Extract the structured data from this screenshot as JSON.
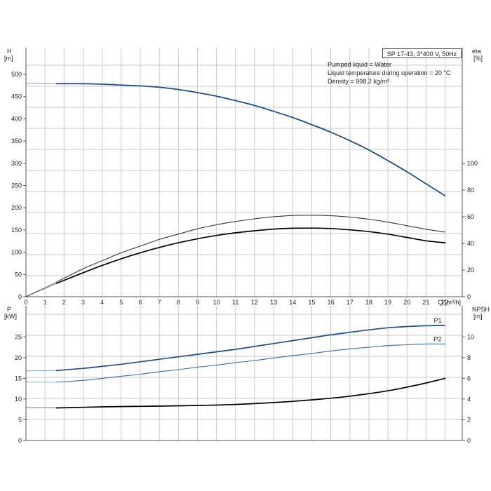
{
  "chart_data": [
    {
      "type": "line",
      "title": "",
      "ylabel_left": [
        "H",
        "[m]"
      ],
      "ylabel_right": [
        "eta",
        "[%]"
      ],
      "xlabel": "Q [m³/h]",
      "xlim": [
        0,
        22.9
      ],
      "ylim": [
        0,
        560
      ],
      "ylim_right": [
        0,
        187
      ],
      "x_ticks": [
        "0",
        "1",
        "2",
        "3",
        "4",
        "5",
        "6",
        "7",
        "8",
        "9",
        "10",
        "11",
        "12",
        "13",
        "14",
        "15",
        "16",
        "17",
        "18",
        "19",
        "20",
        "21",
        "22"
      ],
      "y_ticks": [
        "0",
        "50",
        "100",
        "150",
        "200",
        "250",
        "300",
        "350",
        "400",
        "450",
        "500"
      ],
      "y_ticks_right": [
        "0",
        "20",
        "40",
        "60",
        "80",
        "100"
      ],
      "grid": true,
      "series": [
        {
          "id": "head",
          "axis": "left",
          "color": "#1f4e8c",
          "x": [
            0,
            1.6,
            3,
            4,
            5,
            6,
            7,
            8,
            9,
            10,
            11,
            12,
            13,
            14,
            15,
            16,
            17,
            18,
            19,
            20,
            21,
            22
          ],
          "y": [
            480,
            479,
            479,
            478,
            476,
            474,
            471,
            466,
            459,
            451,
            441,
            430,
            417,
            403,
            387,
            370,
            351,
            330,
            306,
            281,
            254,
            227
          ]
        },
        {
          "id": "eta-pump",
          "axis": "right",
          "color": "#333333",
          "x": [
            0,
            1.6,
            3,
            4,
            5,
            6,
            7,
            8,
            9,
            10,
            11,
            12,
            13,
            14,
            15,
            16,
            17,
            18,
            19,
            20,
            21,
            22
          ],
          "y": [
            0,
            11,
            21,
            27,
            33,
            38,
            43,
            47,
            51,
            54,
            56.5,
            58.5,
            60,
            61,
            61.2,
            60.8,
            59.8,
            58.2,
            56,
            53.3,
            50.7,
            48.5
          ]
        },
        {
          "id": "eta-total",
          "axis": "right",
          "color": "#000000",
          "x": [
            0,
            1.6,
            3,
            4,
            5,
            6,
            7,
            8,
            9,
            10,
            11,
            12,
            13,
            14,
            15,
            16,
            17,
            18,
            19,
            20,
            21,
            22
          ],
          "y": [
            0,
            10,
            18,
            23.5,
            28.5,
            33,
            37,
            40.5,
            43.5,
            46,
            48,
            49.5,
            50.8,
            51.4,
            51.5,
            51.2,
            50.2,
            48.9,
            47,
            44.5,
            42,
            40.5
          ]
        }
      ]
    },
    {
      "type": "line",
      "title": "",
      "ylabel_left": [
        "P",
        "[kW]"
      ],
      "ylabel_right": [
        "NPSH",
        "[m]"
      ],
      "xlabel": "",
      "xlim": [
        0,
        22.9
      ],
      "ylim": [
        0,
        32.5
      ],
      "ylim_right": [
        0,
        13
      ],
      "y_ticks": [
        "0",
        "5",
        "10",
        "15",
        "20",
        "25"
      ],
      "y_ticks_right": [
        "0",
        "2",
        "4",
        "6",
        "8",
        "10"
      ],
      "grid": true,
      "series": [
        {
          "id": "p1",
          "name": "P1",
          "axis": "left",
          "color": "#1f4e8c",
          "x": [
            0,
            1.6,
            3,
            4,
            5,
            6,
            7,
            8,
            9,
            10,
            11,
            12,
            13,
            14,
            15,
            16,
            17,
            18,
            19,
            20,
            21,
            22
          ],
          "y": [
            16.8,
            16.9,
            17.4,
            17.9,
            18.4,
            19.0,
            19.6,
            20.2,
            20.8,
            21.4,
            22.0,
            22.7,
            23.4,
            24.1,
            24.8,
            25.5,
            26.1,
            26.7,
            27.2,
            27.5,
            27.7,
            27.8
          ]
        },
        {
          "id": "p2",
          "name": "P2",
          "axis": "left",
          "color": "#3a6aa8",
          "x": [
            0,
            1.6,
            3,
            4,
            5,
            6,
            7,
            8,
            9,
            10,
            11,
            12,
            13,
            14,
            15,
            16,
            17,
            18,
            19,
            20,
            21,
            22
          ],
          "y": [
            14.1,
            14.1,
            14.5,
            15.0,
            15.5,
            16.0,
            16.6,
            17.1,
            17.7,
            18.2,
            18.8,
            19.3,
            19.9,
            20.5,
            21.0,
            21.6,
            22.1,
            22.5,
            22.9,
            23.1,
            23.3,
            23.3
          ]
        },
        {
          "id": "npsh",
          "axis": "right",
          "color": "#000000",
          "x": [
            0,
            1.6,
            3,
            4,
            5,
            6,
            7,
            8,
            9,
            10,
            11,
            12,
            13,
            14,
            15,
            16,
            17,
            18,
            19,
            20,
            21,
            22
          ],
          "y": [
            3.15,
            3.15,
            3.2,
            3.25,
            3.28,
            3.3,
            3.32,
            3.35,
            3.38,
            3.42,
            3.48,
            3.56,
            3.66,
            3.78,
            3.92,
            4.08,
            4.28,
            4.52,
            4.8,
            5.15,
            5.55,
            6.0
          ]
        }
      ]
    }
  ],
  "info": {
    "model": "SP 17-43, 3*400 V, 50Hz",
    "liquid": "Pumped liquid = Water",
    "temperature": "Liquid temperature during operation = 20 °C",
    "density": "Density = 998.2 kg/m³"
  }
}
